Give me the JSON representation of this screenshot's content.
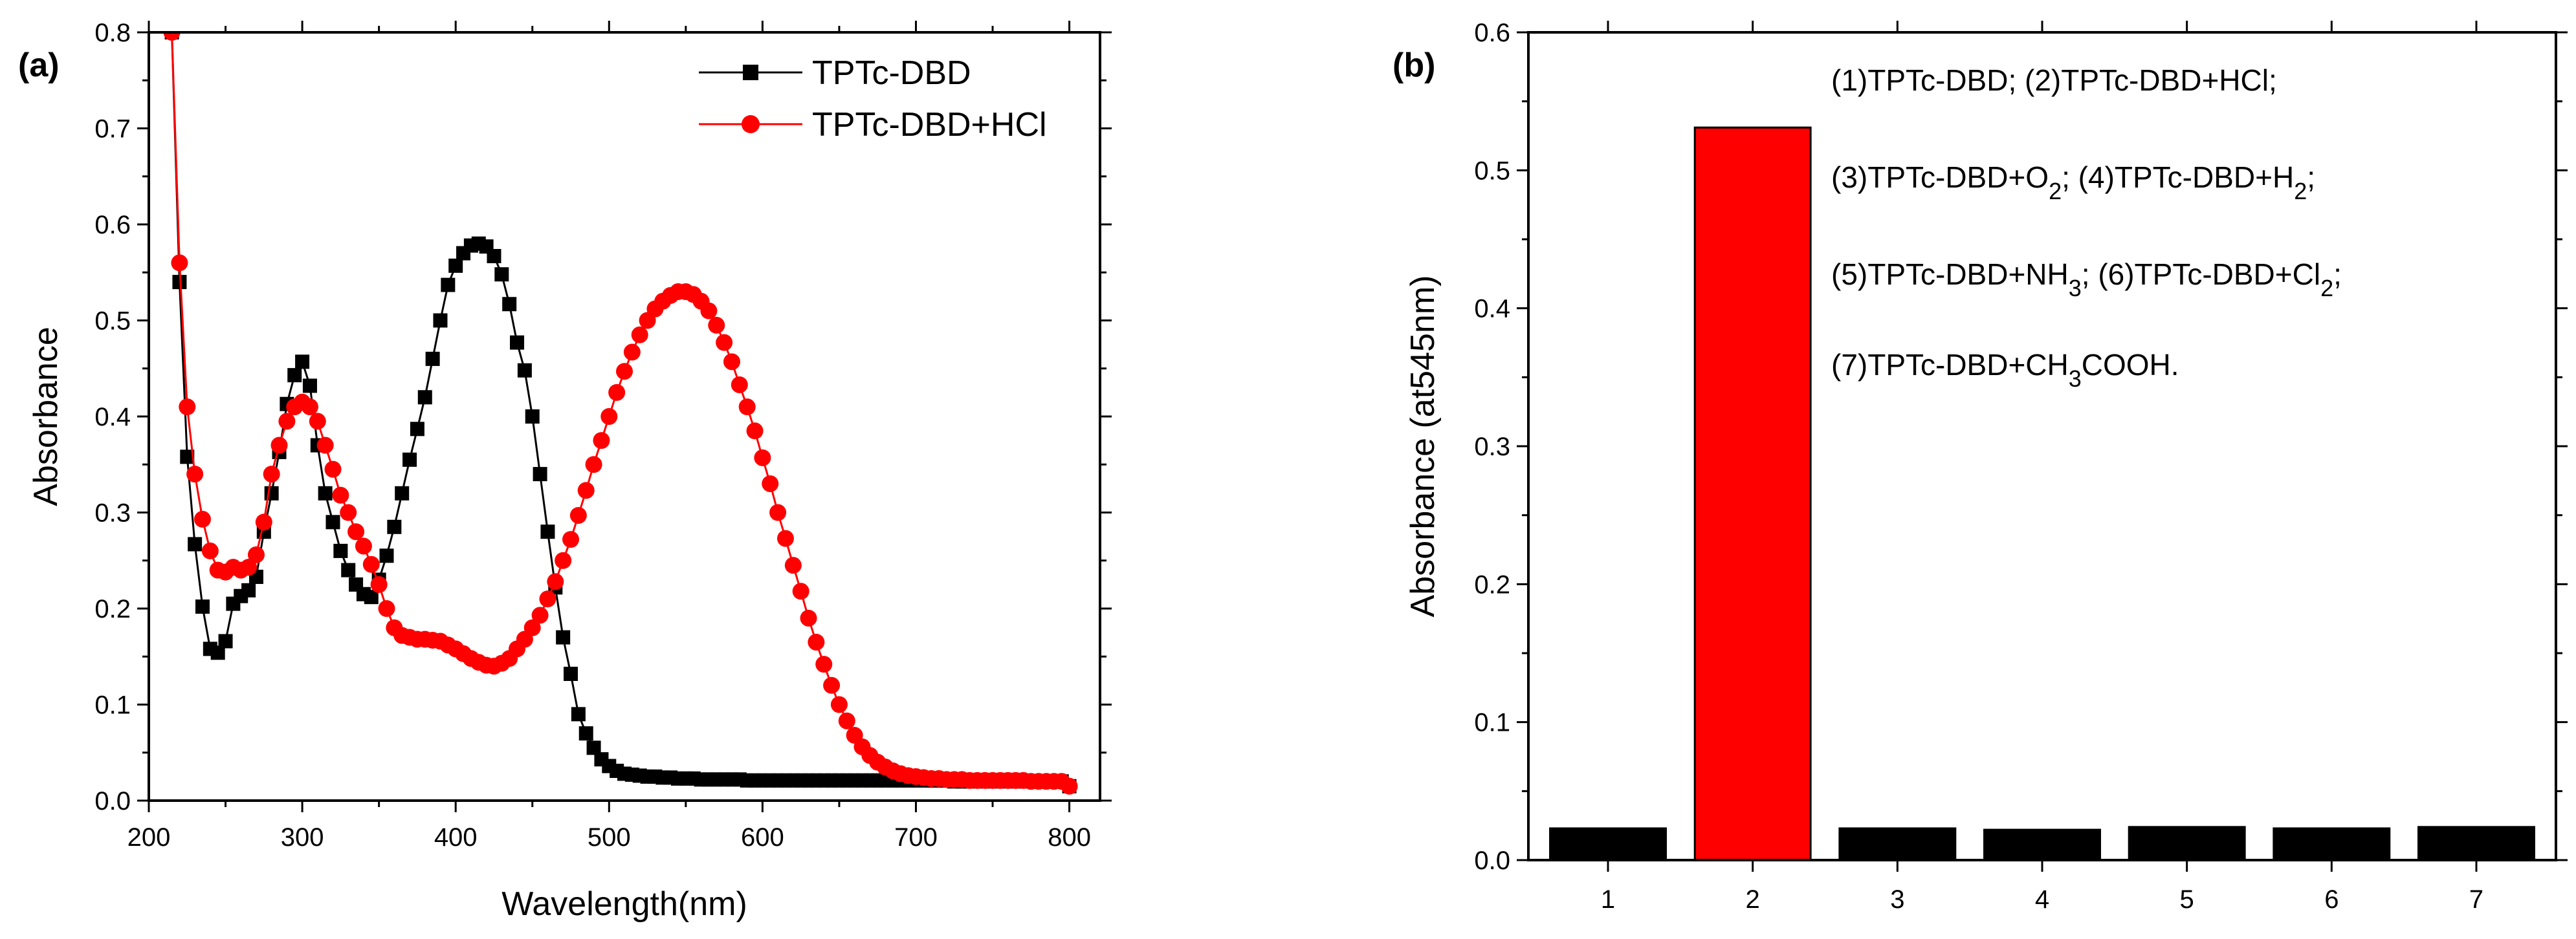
{
  "chart_data": [
    {
      "panel": "(a)",
      "type": "line",
      "xlabel": "Wavelength(nm)",
      "ylabel": "Absorbance",
      "xlim": [
        200,
        820
      ],
      "ylim": [
        0,
        0.8
      ],
      "xticks": [
        200,
        300,
        400,
        500,
        600,
        700,
        800
      ],
      "xtick_labels": [
        "200",
        "300",
        "400",
        "500",
        "600",
        "700",
        "800"
      ],
      "yticks": [
        0,
        0.1,
        0.2,
        0.3,
        0.4,
        0.5,
        0.6,
        0.7,
        0.8
      ],
      "ytick_labels": [
        "0.0",
        "0.1",
        "0.2",
        "0.3",
        "0.4",
        "0.5",
        "0.6",
        "0.7",
        "0.8"
      ],
      "grid": false,
      "legend_position": "top-right",
      "series": [
        {
          "name": "TPTc-DBD",
          "color": "#000000",
          "marker": "square",
          "x": [
            215,
            220,
            225,
            230,
            235,
            240,
            245,
            250,
            255,
            260,
            265,
            270,
            275,
            280,
            285,
            290,
            295,
            300,
            305,
            310,
            315,
            320,
            325,
            330,
            335,
            340,
            345,
            350,
            355,
            360,
            365,
            370,
            375,
            380,
            385,
            390,
            395,
            400,
            405,
            410,
            415,
            420,
            425,
            430,
            435,
            440,
            445,
            450,
            455,
            460,
            465,
            470,
            475,
            480,
            485,
            490,
            495,
            500,
            505,
            510,
            515,
            520,
            525,
            530,
            535,
            540,
            545,
            550,
            555,
            560,
            565,
            570,
            575,
            580,
            585,
            590,
            595,
            600,
            605,
            610,
            615,
            620,
            625,
            630,
            635,
            640,
            645,
            650,
            655,
            660,
            665,
            670,
            675,
            680,
            685,
            690,
            695,
            700,
            705,
            710,
            715,
            720,
            725,
            730,
            735,
            740,
            745,
            750,
            755,
            760,
            765,
            770,
            775,
            780,
            785,
            790,
            795,
            800
          ],
          "y": [
            0.8,
            0.54,
            0.358,
            0.267,
            0.202,
            0.158,
            0.154,
            0.166,
            0.205,
            0.213,
            0.219,
            0.233,
            0.28,
            0.32,
            0.363,
            0.413,
            0.443,
            0.457,
            0.432,
            0.37,
            0.32,
            0.29,
            0.26,
            0.24,
            0.225,
            0.215,
            0.212,
            0.23,
            0.255,
            0.285,
            0.32,
            0.355,
            0.387,
            0.42,
            0.46,
            0.5,
            0.537,
            0.557,
            0.57,
            0.578,
            0.58,
            0.577,
            0.567,
            0.548,
            0.517,
            0.477,
            0.448,
            0.4,
            0.34,
            0.28,
            0.222,
            0.17,
            0.132,
            0.09,
            0.07,
            0.055,
            0.043,
            0.036,
            0.031,
            0.028,
            0.027,
            0.026,
            0.025,
            0.025,
            0.024,
            0.024,
            0.023,
            0.023,
            0.023,
            0.022,
            0.022,
            0.022,
            0.022,
            0.022,
            0.022,
            0.021,
            0.021,
            0.021,
            0.021,
            0.021,
            0.021,
            0.021,
            0.021,
            0.021,
            0.021,
            0.021,
            0.021,
            0.021,
            0.021,
            0.021,
            0.021,
            0.021,
            0.021,
            0.021,
            0.021,
            0.021,
            0.021,
            0.021,
            0.021,
            0.021,
            0.021,
            0.021,
            0.02,
            0.02,
            0.02,
            0.02,
            0.02,
            0.02,
            0.02,
            0.02,
            0.02,
            0.02,
            0.02,
            0.02,
            0.02,
            0.02,
            0.02,
            0.015
          ]
        },
        {
          "name": "TPTc-DBD+HCl",
          "color": "#ff0000",
          "marker": "circle",
          "x": [
            215,
            220,
            225,
            230,
            235,
            240,
            245,
            250,
            255,
            260,
            265,
            270,
            275,
            280,
            285,
            290,
            295,
            300,
            305,
            310,
            315,
            320,
            325,
            330,
            335,
            340,
            345,
            350,
            355,
            360,
            365,
            370,
            375,
            380,
            385,
            390,
            395,
            400,
            405,
            410,
            415,
            420,
            425,
            430,
            435,
            440,
            445,
            450,
            455,
            460,
            465,
            470,
            475,
            480,
            485,
            490,
            495,
            500,
            505,
            510,
            515,
            520,
            525,
            530,
            535,
            540,
            545,
            550,
            555,
            560,
            565,
            570,
            575,
            580,
            585,
            590,
            595,
            600,
            605,
            610,
            615,
            620,
            625,
            630,
            635,
            640,
            645,
            650,
            655,
            660,
            665,
            670,
            675,
            680,
            685,
            690,
            695,
            700,
            705,
            710,
            715,
            720,
            725,
            730,
            735,
            740,
            745,
            750,
            755,
            760,
            765,
            770,
            775,
            780,
            785,
            790,
            795,
            800
          ],
          "y": [
            0.8,
            0.56,
            0.41,
            0.34,
            0.293,
            0.26,
            0.24,
            0.238,
            0.243,
            0.24,
            0.243,
            0.256,
            0.29,
            0.34,
            0.37,
            0.395,
            0.41,
            0.415,
            0.41,
            0.395,
            0.37,
            0.345,
            0.318,
            0.3,
            0.28,
            0.265,
            0.246,
            0.225,
            0.2,
            0.18,
            0.172,
            0.17,
            0.168,
            0.168,
            0.167,
            0.166,
            0.162,
            0.158,
            0.153,
            0.148,
            0.144,
            0.141,
            0.14,
            0.143,
            0.148,
            0.158,
            0.168,
            0.18,
            0.193,
            0.21,
            0.228,
            0.25,
            0.272,
            0.297,
            0.323,
            0.35,
            0.375,
            0.4,
            0.425,
            0.447,
            0.467,
            0.485,
            0.5,
            0.512,
            0.52,
            0.526,
            0.53,
            0.53,
            0.527,
            0.52,
            0.51,
            0.495,
            0.477,
            0.457,
            0.433,
            0.41,
            0.385,
            0.357,
            0.33,
            0.3,
            0.273,
            0.245,
            0.218,
            0.19,
            0.165,
            0.142,
            0.12,
            0.1,
            0.083,
            0.068,
            0.056,
            0.047,
            0.04,
            0.035,
            0.031,
            0.028,
            0.026,
            0.025,
            0.024,
            0.023,
            0.023,
            0.022,
            0.022,
            0.022,
            0.021,
            0.021,
            0.021,
            0.021,
            0.021,
            0.021,
            0.021,
            0.021,
            0.02,
            0.02,
            0.02,
            0.02,
            0.02,
            0.015
          ]
        }
      ]
    },
    {
      "panel": "(b)",
      "type": "bar",
      "ylabel": "Absorbance (at545nm)",
      "ylim": [
        0,
        0.6
      ],
      "yticks": [
        0,
        0.1,
        0.2,
        0.3,
        0.4,
        0.5,
        0.6
      ],
      "ytick_labels": [
        "0.0",
        "0.1",
        "0.2",
        "0.3",
        "0.4",
        "0.5",
        "0.6"
      ],
      "categories": [
        "1",
        "2",
        "3",
        "4",
        "5",
        "6",
        "7"
      ],
      "values": [
        0.023,
        0.531,
        0.023,
        0.022,
        0.024,
        0.023,
        0.024
      ],
      "bar_colors": [
        "#000000",
        "#ff0000",
        "#000000",
        "#000000",
        "#000000",
        "#000000",
        "#000000"
      ],
      "grid": false,
      "annotations": [
        [
          {
            "text": "(1)TPTc-DBD;  (2)TPTc-DBD+HCl;"
          }
        ],
        [
          {
            "text": "(3)TPTc-DBD+O"
          },
          {
            "text": "2",
            "sub": true
          },
          {
            "text": "; (4)TPTc-DBD+H"
          },
          {
            "text": "2",
            "sub": true
          },
          {
            "text": ";"
          }
        ],
        [
          {
            "text": "(5)TPTc-DBD+NH"
          },
          {
            "text": "3",
            "sub": true
          },
          {
            "text": "; (6)TPTc-DBD+Cl"
          },
          {
            "text": "2",
            "sub": true
          },
          {
            "text": ";"
          }
        ],
        [
          {
            "text": "(7)TPTc-DBD+CH"
          },
          {
            "text": "3",
            "sub": true
          },
          {
            "text": "COOH."
          }
        ]
      ]
    }
  ]
}
